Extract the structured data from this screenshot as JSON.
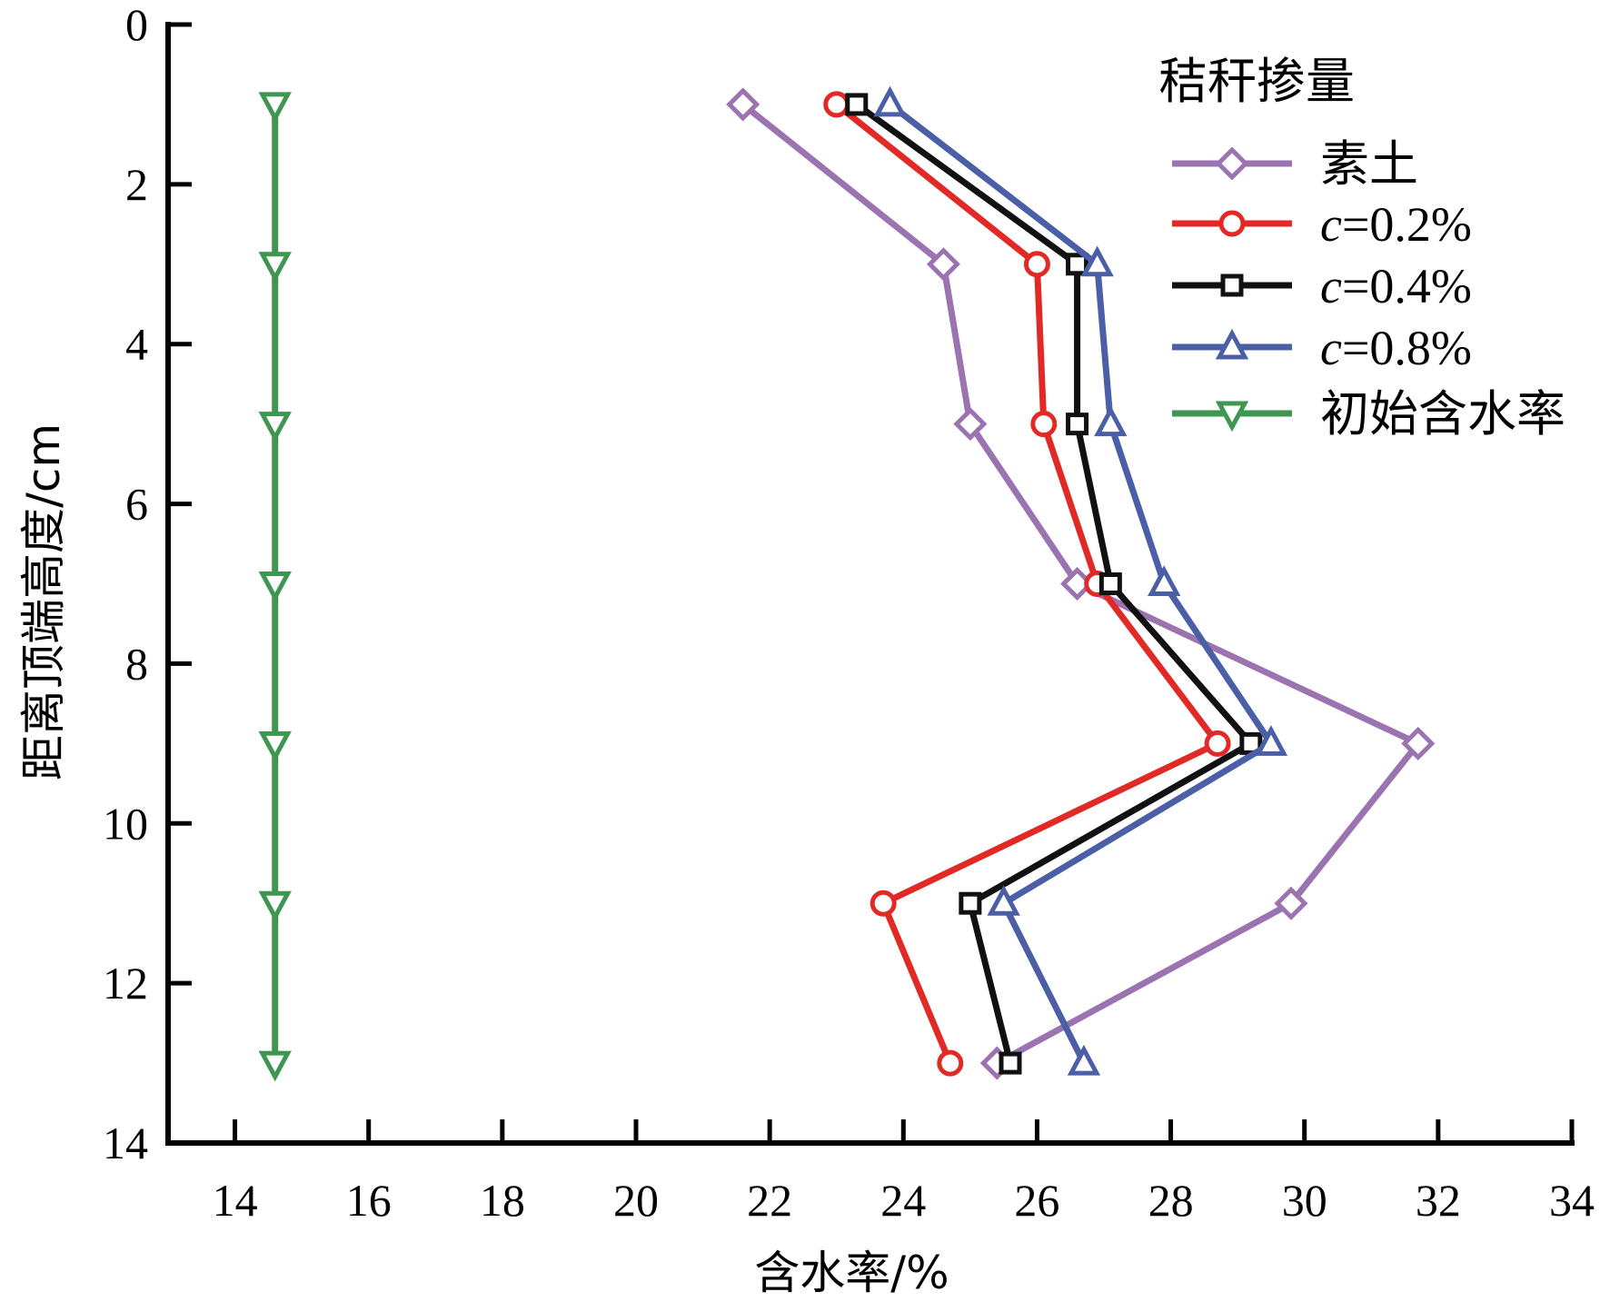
{
  "chart_data": {
    "type": "line",
    "xlabel": "含水率/%",
    "ylabel": "距离顶端高度/cm",
    "xlim": [
      13,
      34
    ],
    "ylim": [
      0,
      14
    ],
    "y_inverted": true,
    "x_ticks": [
      14,
      16,
      18,
      20,
      22,
      24,
      26,
      28,
      30,
      32,
      34
    ],
    "y_ticks": [
      0,
      2,
      4,
      6,
      8,
      10,
      12,
      14
    ],
    "legend": {
      "title": "秸秆掺量",
      "placement": "top-right"
    },
    "series": [
      {
        "name": "素土",
        "color": "#9b73b0",
        "marker": "diamond",
        "points": [
          [
            21.6,
            1
          ],
          [
            24.6,
            3
          ],
          [
            25.0,
            5
          ],
          [
            26.6,
            7
          ],
          [
            31.7,
            9
          ],
          [
            29.8,
            11
          ],
          [
            25.4,
            13
          ]
        ]
      },
      {
        "name_prefix": "c",
        "name_suffix": "=0.2%",
        "name": "c=0.2%",
        "color": "#e12a26",
        "marker": "circle",
        "points": [
          [
            23.0,
            1
          ],
          [
            26.0,
            3
          ],
          [
            26.1,
            5
          ],
          [
            26.9,
            7
          ],
          [
            28.7,
            9
          ],
          [
            23.7,
            11
          ],
          [
            24.7,
            13
          ]
        ]
      },
      {
        "name_prefix": "c",
        "name_suffix": "=0.4%",
        "name": "c=0.4%",
        "color": "#111111",
        "marker": "square",
        "points": [
          [
            23.3,
            1
          ],
          [
            26.6,
            3
          ],
          [
            26.6,
            5
          ],
          [
            27.1,
            7
          ],
          [
            29.2,
            9
          ],
          [
            25.0,
            11
          ],
          [
            25.6,
            13
          ]
        ]
      },
      {
        "name_prefix": "c",
        "name_suffix": "=0.8%",
        "name": "c=0.8%",
        "color": "#4a5fa5",
        "marker": "triangle-up",
        "points": [
          [
            23.8,
            1
          ],
          [
            26.9,
            3
          ],
          [
            27.1,
            5
          ],
          [
            27.9,
            7
          ],
          [
            29.5,
            9
          ],
          [
            25.5,
            11
          ],
          [
            26.7,
            13
          ]
        ]
      },
      {
        "name": "初始含水率",
        "color": "#3e9650",
        "marker": "triangle-down",
        "points": [
          [
            14.6,
            1
          ],
          [
            14.6,
            3
          ],
          [
            14.6,
            5
          ],
          [
            14.6,
            7
          ],
          [
            14.6,
            9
          ],
          [
            14.6,
            11
          ],
          [
            14.6,
            13
          ]
        ]
      }
    ]
  }
}
